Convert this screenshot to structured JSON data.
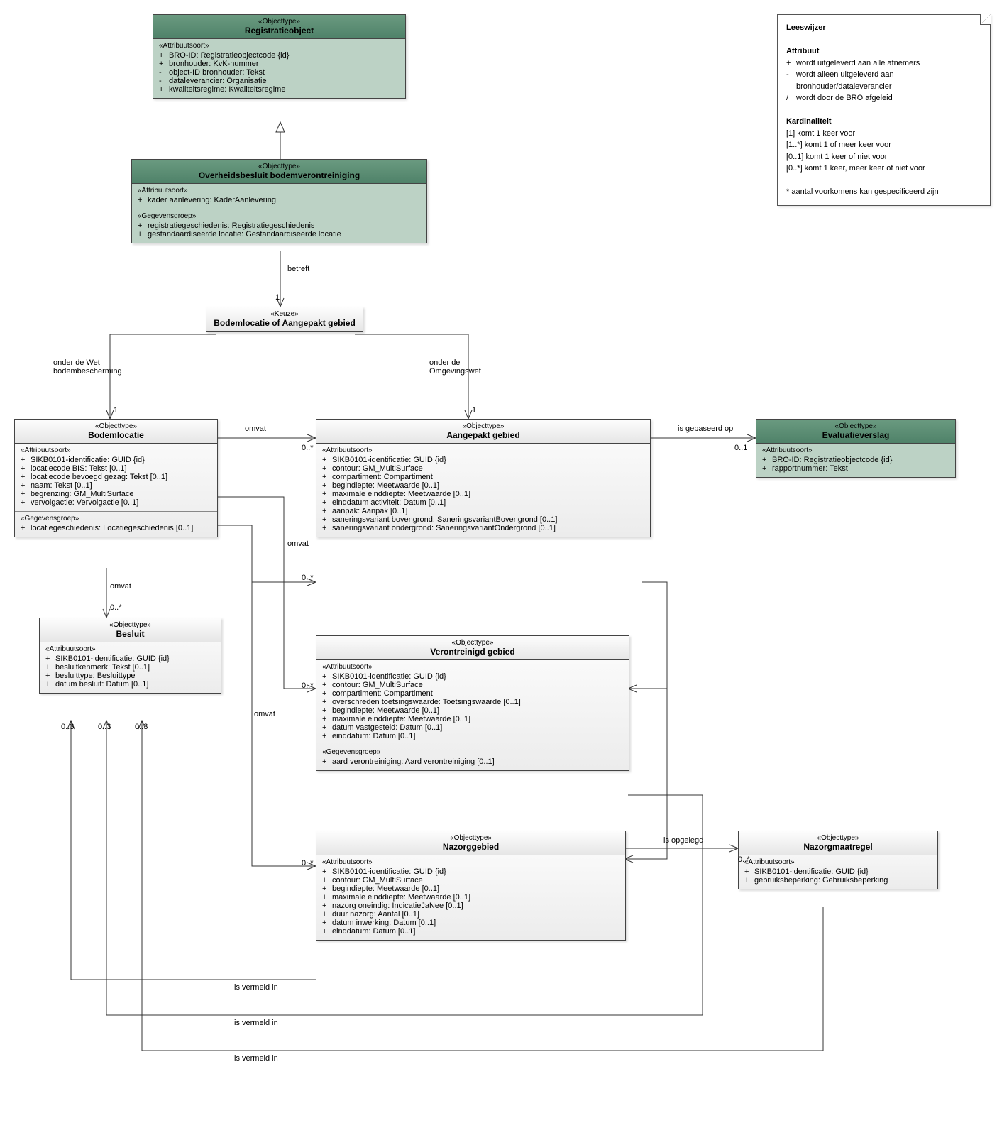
{
  "legend": {
    "title": "Leeswijzer",
    "attrHead": "Attribuut",
    "a1l": "+",
    "a1t": "wordt uitgeleverd aan alle afnemers",
    "a2l": "-",
    "a2t": "wordt alleen uitgeleverd aan bronhouder/dataleverancier",
    "a3l": "/",
    "a3t": "wordt door de BRO afgeleid",
    "kardHead": "Kardinaliteit",
    "k1": "[1]   komt 1 keer voor",
    "k2": "[1..*] komt 1 of meer keer voor",
    "k3": "[0..1] komt 1 keer of niet voor",
    "k4": "[0..*] komt 1 keer, meer keer of niet voor",
    "foot": "* aantal voorkomens kan gespecificeerd zijn"
  },
  "registratie": {
    "st": "«Objecttype»",
    "title": "Registratieobject",
    "sh": "«Attribuutsoort»",
    "a": [
      {
        "s": "+",
        "t": "BRO-ID: Registratieobjectcode {id}"
      },
      {
        "s": "+",
        "t": "bronhouder: KvK-nummer"
      },
      {
        "s": "-",
        "t": "object-ID bronhouder: Tekst"
      },
      {
        "s": "-",
        "t": "dataleverancier: Organisatie"
      },
      {
        "s": "+",
        "t": "kwaliteitsregime: Kwaliteitsregime"
      }
    ]
  },
  "overheids": {
    "st": "«Objecttype»",
    "title": "Overheidsbesluit bodemverontreiniging",
    "sh1": "«Attribuutsoort»",
    "a1": [
      {
        "s": "+",
        "t": "kader aanlevering: KaderAanlevering"
      }
    ],
    "sh2": "«Gegevensgroep»",
    "a2": [
      {
        "s": "+",
        "t": "registratiegeschiedenis: Registratiegeschiedenis"
      },
      {
        "s": "+",
        "t": "gestandaardiseerde locatie: Gestandaardiseerde locatie"
      }
    ]
  },
  "keuze": {
    "st": "«Keuze»",
    "title": "Bodemlocatie of Aangepakt gebied"
  },
  "bodemloc": {
    "st": "«Objecttype»",
    "title": "Bodemlocatie",
    "sh1": "«Attribuutsoort»",
    "a1": [
      {
        "s": "+",
        "t": "SIKB0101-identificatie: GUID {id}"
      },
      {
        "s": "+",
        "t": "locatiecode BIS: Tekst [0..1]"
      },
      {
        "s": "+",
        "t": "locatiecode bevoegd gezag: Tekst [0..1]"
      },
      {
        "s": "+",
        "t": "naam: Tekst [0..1]"
      },
      {
        "s": "+",
        "t": "begrenzing: GM_MultiSurface"
      },
      {
        "s": "+",
        "t": "vervolgactie: Vervolgactie [0..1]"
      }
    ],
    "sh2": "«Gegevensgroep»",
    "a2": [
      {
        "s": "+",
        "t": "locatiegeschiedenis: Locatiegeschiedenis [0..1]"
      }
    ]
  },
  "aangepakt": {
    "st": "«Objecttype»",
    "title": "Aangepakt gebied",
    "sh": "«Attribuutsoort»",
    "a": [
      {
        "s": "+",
        "t": "SIKB0101-identificatie: GUID {id}"
      },
      {
        "s": "+",
        "t": "contour: GM_MultiSurface"
      },
      {
        "s": "+",
        "t": "compartiment: Compartiment"
      },
      {
        "s": "+",
        "t": "begindiepte: Meetwaarde [0..1]"
      },
      {
        "s": "+",
        "t": "maximale einddiepte: Meetwaarde [0..1]"
      },
      {
        "s": "+",
        "t": "einddatum activiteit: Datum [0..1]"
      },
      {
        "s": "+",
        "t": "aanpak: Aanpak [0..1]"
      },
      {
        "s": "+",
        "t": "saneringsvariant bovengrond: SaneringsvariantBovengrond [0..1]"
      },
      {
        "s": "+",
        "t": "saneringsvariant ondergrond: SaneringsvariantOndergrond [0..1]"
      }
    ]
  },
  "eval": {
    "st": "«Objecttype»",
    "title": "Evaluatieverslag",
    "sh": "«Attribuutsoort»",
    "a": [
      {
        "s": "+",
        "t": "BRO-ID: Registratieobjectcode {id}"
      },
      {
        "s": "+",
        "t": "rapportnummer: Tekst"
      }
    ]
  },
  "besluit": {
    "st": "«Objecttype»",
    "title": "Besluit",
    "sh": "«Attribuutsoort»",
    "a": [
      {
        "s": "+",
        "t": "SIKB0101-identificatie: GUID {id}"
      },
      {
        "s": "+",
        "t": "besluitkenmerk: Tekst [0..1]"
      },
      {
        "s": "+",
        "t": "besluittype: Besluittype"
      },
      {
        "s": "+",
        "t": "datum besluit: Datum [0..1]"
      }
    ]
  },
  "verontreinigd": {
    "st": "«Objecttype»",
    "title": "Verontreinigd gebied",
    "sh1": "«Attribuutsoort»",
    "a1": [
      {
        "s": "+",
        "t": "SIKB0101-identificatie: GUID {id}"
      },
      {
        "s": "+",
        "t": "contour: GM_MultiSurface"
      },
      {
        "s": "+",
        "t": "compartiment: Compartiment"
      },
      {
        "s": "+",
        "t": "overschreden toetsingswaarde: Toetsingswaarde [0..1]"
      },
      {
        "s": "+",
        "t": "begindiepte: Meetwaarde [0..1]"
      },
      {
        "s": "+",
        "t": "maximale einddiepte: Meetwaarde [0..1]"
      },
      {
        "s": "+",
        "t": "datum vastgesteld: Datum [0..1]"
      },
      {
        "s": "+",
        "t": "einddatum: Datum [0..1]"
      }
    ],
    "sh2": "«Gegevensgroep»",
    "a2": [
      {
        "s": "+",
        "t": "aard verontreiniging: Aard verontreiniging [0..1]"
      }
    ]
  },
  "nazorggebied": {
    "st": "«Objecttype»",
    "title": "Nazorggebied",
    "sh": "«Attribuutsoort»",
    "a": [
      {
        "s": "+",
        "t": "SIKB0101-identificatie: GUID {id}"
      },
      {
        "s": "+",
        "t": "contour: GM_MultiSurface"
      },
      {
        "s": "+",
        "t": "begindiepte: Meetwaarde [0..1]"
      },
      {
        "s": "+",
        "t": "maximale einddiepte: Meetwaarde [0..1]"
      },
      {
        "s": "+",
        "t": "nazorg oneindig: IndicatieJaNee [0..1]"
      },
      {
        "s": "+",
        "t": "duur nazorg: Aantal [0..1]"
      },
      {
        "s": "+",
        "t": "datum inwerking: Datum [0..1]"
      },
      {
        "s": "+",
        "t": "einddatum: Datum [0..1]"
      }
    ]
  },
  "nazorgmaatregel": {
    "st": "«Objecttype»",
    "title": "Nazorgmaatregel",
    "sh": "«Attribuutsoort»",
    "a": [
      {
        "s": "+",
        "t": "SIKB0101-identificatie: GUID {id}"
      },
      {
        "s": "+",
        "t": "gebruiksbeperking: Gebruiksbeperking"
      }
    ]
  },
  "labels": {
    "betreft": "betreft",
    "onderWet": "onder de Wet\nbodembescherming",
    "onderOmg": "onder de\nOmgevingswet",
    "omvat": "omvat",
    "isGebaseerd": "is gebaseerd op",
    "isOpgelegd": "is opgelegd",
    "isVermeld": "is vermeld in",
    "n1": "1",
    "n0s": "0..*",
    "n01": "0..1",
    "n03": "0..3"
  }
}
